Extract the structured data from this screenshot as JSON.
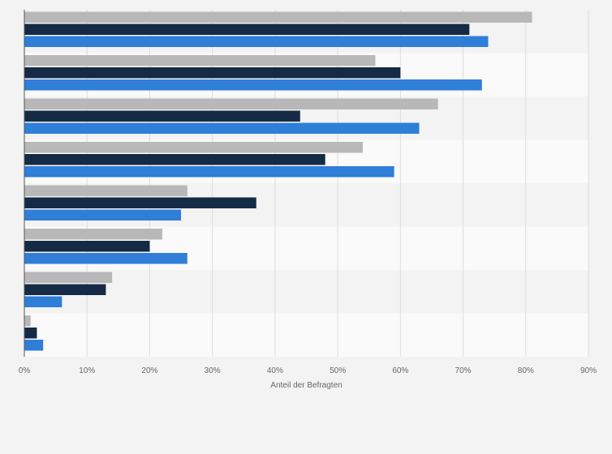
{
  "chart_data": {
    "type": "bar",
    "orientation": "horizontal",
    "title": "",
    "xlabel": "Anteil der Befragten",
    "ylabel": "",
    "xlim": [
      0,
      90
    ],
    "x_ticks": [
      "0%",
      "10%",
      "20%",
      "30%",
      "40%",
      "50%",
      "60%",
      "70%",
      "80%",
      "90%"
    ],
    "grid": true,
    "legend": "none",
    "categories": [
      "",
      "",
      "",
      "",
      "",
      "",
      "",
      ""
    ],
    "series": [
      {
        "color": "#b8b8b8",
        "values": [
          81,
          56,
          66,
          54,
          26,
          22,
          14,
          1
        ]
      },
      {
        "color": "#152a44",
        "values": [
          71,
          60,
          44,
          48,
          37,
          20,
          13,
          2
        ]
      },
      {
        "color": "#2f7ed8",
        "values": [
          74,
          73,
          63,
          59,
          25,
          26,
          6,
          3
        ]
      }
    ]
  }
}
